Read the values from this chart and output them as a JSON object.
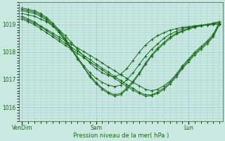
{
  "background_color": "#c8e8e0",
  "plot_bg_color": "#c8e8e0",
  "grid_color": "#99cccc",
  "line_color": "#1a6b1a",
  "marker_color": "#1a6b1a",
  "xlabel": "Pression niveau de la mer( hPa )",
  "ylim": [
    1015.5,
    1019.8
  ],
  "yticks": [
    1016,
    1017,
    1018,
    1019
  ],
  "xtick_labels": [
    "VenDim",
    "Sam",
    "Lun"
  ],
  "xtick_positions": [
    0,
    12,
    27
  ],
  "total_points": 33,
  "series": [
    [
      1019.4,
      1019.35,
      1019.3,
      1019.2,
      1019.1,
      1018.95,
      1018.8,
      1018.6,
      1018.35,
      1018.1,
      1017.85,
      1017.6,
      1017.4,
      1017.25,
      1017.15,
      1017.1,
      1017.2,
      1017.4,
      1017.7,
      1018.0,
      1018.25,
      1018.45,
      1018.6,
      1018.7,
      1018.8,
      1018.85,
      1018.9,
      1018.92,
      1018.95,
      1018.97,
      1019.0,
      1019.05,
      1019.1
    ],
    [
      1019.5,
      1019.45,
      1019.4,
      1019.3,
      1019.15,
      1018.95,
      1018.7,
      1018.4,
      1018.1,
      1017.8,
      1017.5,
      1017.25,
      1017.05,
      1016.9,
      1016.8,
      1016.75,
      1016.8,
      1017.0,
      1017.25,
      1017.55,
      1017.85,
      1018.1,
      1018.3,
      1018.5,
      1018.65,
      1018.75,
      1018.85,
      1018.9,
      1018.95,
      1018.98,
      1019.0,
      1019.05,
      1019.1
    ],
    [
      1019.55,
      1019.5,
      1019.45,
      1019.35,
      1019.2,
      1019.0,
      1018.75,
      1018.45,
      1018.1,
      1017.75,
      1017.45,
      1017.15,
      1016.9,
      1016.7,
      1016.55,
      1016.45,
      1016.5,
      1016.7,
      1016.95,
      1017.25,
      1017.6,
      1017.9,
      1018.15,
      1018.35,
      1018.55,
      1018.68,
      1018.78,
      1018.86,
      1018.92,
      1018.96,
      1019.0,
      1019.03,
      1019.05
    ],
    [
      1019.6,
      1019.55,
      1019.5,
      1019.4,
      1019.25,
      1019.05,
      1018.8,
      1018.5,
      1018.15,
      1017.8,
      1017.45,
      1017.1,
      1016.85,
      1016.65,
      1016.5,
      1016.4,
      1016.45,
      1016.65,
      1016.9,
      1017.2,
      1017.55,
      1017.85,
      1018.1,
      1018.3,
      1018.5,
      1018.65,
      1018.75,
      1018.83,
      1018.9,
      1018.95,
      1018.98,
      1019.0,
      1019.02
    ],
    [
      1019.2,
      1019.1,
      1019.0,
      1018.85,
      1018.7,
      1018.55,
      1018.4,
      1018.25,
      1018.1,
      1017.95,
      1017.8,
      1017.65,
      1017.5,
      1017.35,
      1017.2,
      1017.05,
      1016.9,
      1016.75,
      1016.62,
      1016.5,
      1016.4,
      1016.42,
      1016.5,
      1016.65,
      1016.85,
      1017.1,
      1017.4,
      1017.65,
      1017.9,
      1018.1,
      1018.3,
      1018.55,
      1019.0
    ],
    [
      1019.25,
      1019.15,
      1019.05,
      1018.92,
      1018.78,
      1018.62,
      1018.47,
      1018.32,
      1018.17,
      1018.03,
      1017.88,
      1017.73,
      1017.57,
      1017.42,
      1017.27,
      1017.12,
      1016.97,
      1016.82,
      1016.68,
      1016.55,
      1016.45,
      1016.45,
      1016.55,
      1016.7,
      1016.9,
      1017.15,
      1017.45,
      1017.7,
      1017.95,
      1018.15,
      1018.35,
      1018.6,
      1019.05
    ],
    [
      1019.3,
      1019.2,
      1019.1,
      1018.95,
      1018.82,
      1018.68,
      1018.55,
      1018.42,
      1018.28,
      1018.15,
      1018.02,
      1017.88,
      1017.75,
      1017.6,
      1017.46,
      1017.32,
      1017.18,
      1017.04,
      1016.9,
      1016.78,
      1016.65,
      1016.6,
      1016.65,
      1016.78,
      1016.95,
      1017.2,
      1017.5,
      1017.75,
      1018.0,
      1018.2,
      1018.4,
      1018.65,
      1019.1
    ]
  ]
}
